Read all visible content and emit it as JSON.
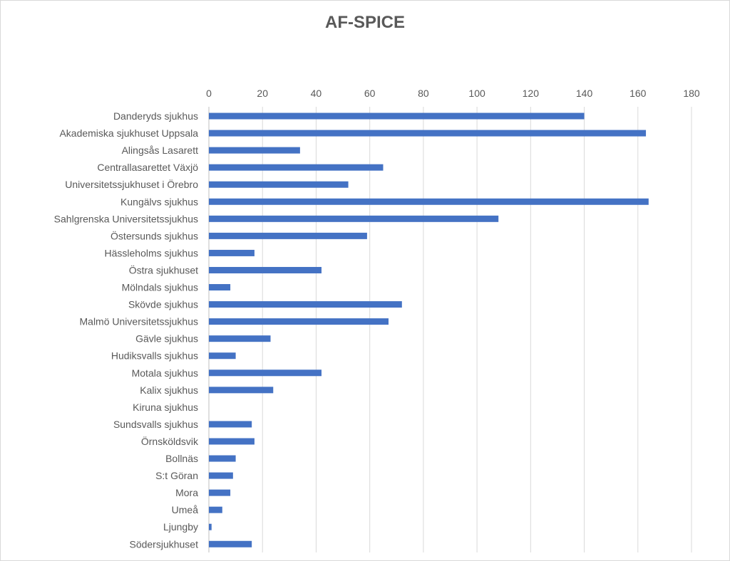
{
  "chart_data": {
    "type": "bar",
    "orientation": "horizontal",
    "title": "AF-SPICE",
    "xlabel": "",
    "ylabel": "",
    "xlim": [
      0,
      180
    ],
    "x_ticks": [
      0,
      20,
      40,
      60,
      80,
      100,
      120,
      140,
      160,
      180
    ],
    "x_axis_position": "top",
    "grid": true,
    "legend": "none",
    "bar_color": "#4472c4",
    "categories": [
      "Danderyds sjukhus",
      "Akademiska sjukhuset Uppsala",
      "Alingsås Lasarett",
      "Centrallasarettet Växjö",
      "Universitetssjukhuset i Örebro",
      "Kungälvs sjukhus",
      "Sahlgrenska Universitetssjukhus",
      "Östersunds sjukhus",
      "Hässleholms sjukhus",
      "Östra sjukhuset",
      "Mölndals sjukhus",
      "Skövde sjukhus",
      "Malmö Universitetssjukhus",
      "Gävle sjukhus",
      "Hudiksvalls sjukhus",
      "Motala sjukhus",
      "Kalix sjukhus",
      "Kiruna sjukhus",
      "Sundsvalls sjukhus",
      "Örnsköldsvik",
      "Bollnäs",
      "S:t Göran",
      "Mora",
      "Umeå",
      "Ljungby",
      "Södersjukhuset"
    ],
    "values": [
      140,
      163,
      34,
      65,
      52,
      164,
      108,
      59,
      17,
      42,
      8,
      72,
      67,
      23,
      10,
      42,
      24,
      0,
      16,
      17,
      10,
      9,
      8,
      5,
      1,
      16
    ]
  }
}
